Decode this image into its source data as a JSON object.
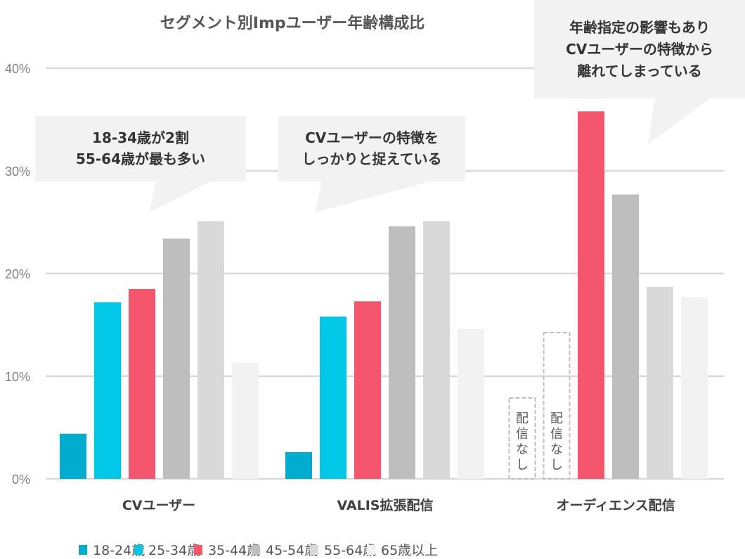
{
  "chart_data": {
    "type": "bar",
    "title": "セグメント別Impユーザー年齢構成比",
    "xlabel": "",
    "ylabel": "",
    "ylim": [
      0,
      40
    ],
    "yticks": [
      0,
      10,
      20,
      30,
      40
    ],
    "ytick_labels": [
      "0%",
      "10%",
      "20%",
      "30%",
      "40%"
    ],
    "grid": true,
    "legend_position": "bottom",
    "categories": [
      "CVユーザー",
      "VALIS拡張配信",
      "オーディエンス配信"
    ],
    "series": [
      {
        "name": "18-24歳",
        "color": "#00adcf",
        "values": [
          4.4,
          2.6,
          null
        ]
      },
      {
        "name": "25-34歳",
        "color": "#00c8e6",
        "values": [
          17.2,
          15.8,
          null
        ]
      },
      {
        "name": "35-44歳",
        "color": "#f4566d",
        "values": [
          18.5,
          17.3,
          35.8
        ]
      },
      {
        "name": "45-54歳",
        "color": "#bebebe",
        "values": [
          23.4,
          24.6,
          27.7
        ]
      },
      {
        "name": "55-64歳",
        "color": "#d9d9d9",
        "values": [
          25.1,
          25.1,
          18.7
        ]
      },
      {
        "name": "65歳以上",
        "color": "#f2f2f2",
        "values": [
          11.3,
          14.6,
          17.7
        ]
      }
    ],
    "no_data_label": "配信なし",
    "annotations": [
      {
        "lines": [
          "18-34歳が2割",
          "55-64歳が最も多い"
        ]
      },
      {
        "lines": [
          "CVユーザーの特徴を",
          "しっかりと捉えている"
        ]
      },
      {
        "lines": [
          "年齢指定の影響もあり",
          "CVユーザーの特徴から",
          "離れてしまっている"
        ]
      }
    ]
  }
}
